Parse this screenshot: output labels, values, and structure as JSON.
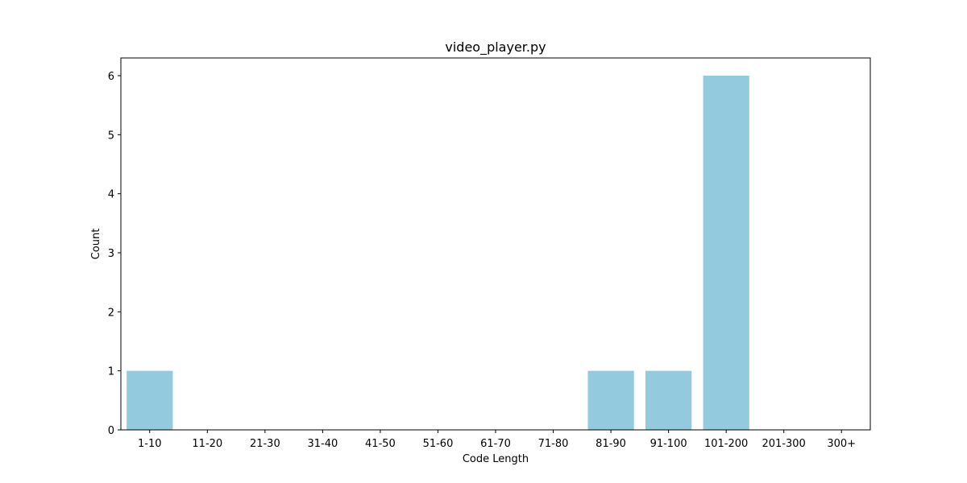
{
  "chart_data": {
    "type": "bar",
    "title": "video_player.py",
    "xlabel": "Code Length",
    "ylabel": "Count",
    "categories": [
      "1-10",
      "11-20",
      "21-30",
      "31-40",
      "41-50",
      "51-60",
      "61-70",
      "71-80",
      "81-90",
      "91-100",
      "101-200",
      "201-300",
      "300+"
    ],
    "values": [
      1,
      0,
      0,
      0,
      0,
      0,
      0,
      0,
      1,
      1,
      6,
      0,
      0
    ],
    "ylim": [
      0,
      6.3
    ],
    "yticks": [
      "0",
      "1",
      "2",
      "3",
      "4",
      "5",
      "6"
    ],
    "bar_color": "#94cadd",
    "grid": false,
    "legend": "none"
  }
}
